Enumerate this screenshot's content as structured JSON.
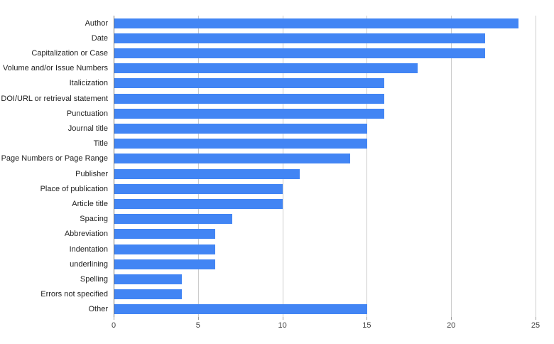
{
  "chart_data": {
    "type": "bar",
    "orientation": "horizontal",
    "title": "",
    "xlabel": "",
    "ylabel": "",
    "categories": [
      "Author",
      "Date",
      "Capitalization or Case",
      "Volume and/or Issue Numbers",
      "Italicization",
      "DOI/URL or retrieval statement",
      "Punctuation",
      "Journal title",
      "Title",
      "Page Numbers or Page Range",
      "Publisher",
      "Place of publication",
      "Article title",
      "Spacing",
      "Abbreviation",
      "Indentation",
      "underlining",
      "Spelling",
      "Errors not specified",
      "Other"
    ],
    "values": [
      24,
      22,
      22,
      18,
      16,
      16,
      16,
      15,
      15,
      14,
      11,
      10,
      10,
      7,
      6,
      6,
      6,
      4,
      4,
      15
    ],
    "xticks": [
      0,
      5,
      10,
      15,
      20,
      25
    ],
    "xlim": [
      0,
      25
    ],
    "grid": true,
    "legend": "none"
  },
  "style": {
    "background": "#ffffff",
    "bar_color": "#4285f4",
    "gridline_color": "#cccccc",
    "axis_line_color": "#757575",
    "tick_color": "#9e9e9e",
    "category_label_color": "#222222",
    "tick_label_color": "#444444"
  }
}
